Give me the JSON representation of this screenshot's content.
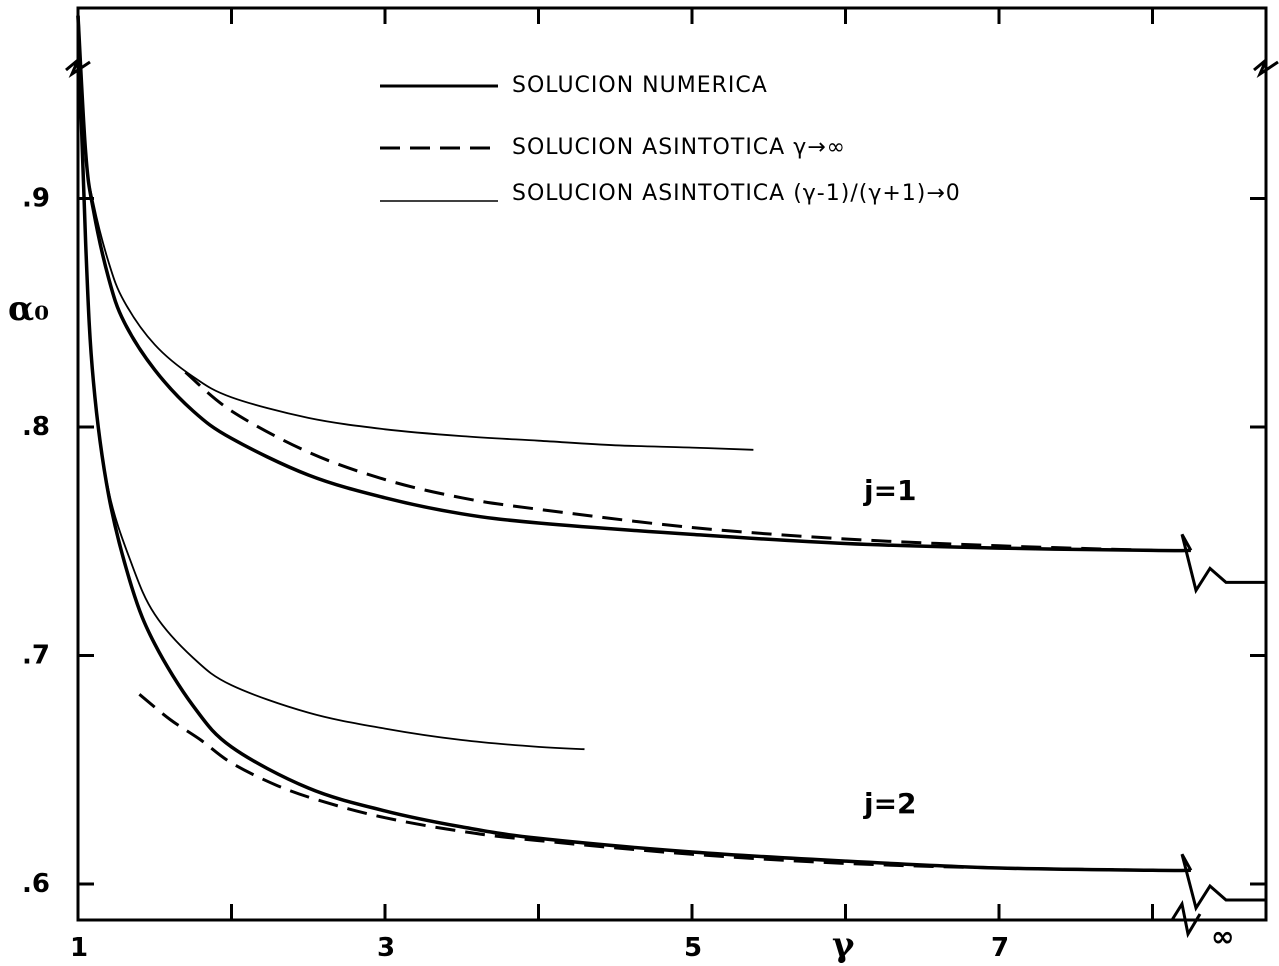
{
  "chart_data": {
    "type": "line",
    "title": "",
    "xlabel": "γ",
    "ylabel": "α₀",
    "xlim": [
      1,
      8.5
    ],
    "ylim": [
      0.59,
      1.0
    ],
    "x_ticks": [
      {
        "value": 1,
        "label": "1"
      },
      {
        "value": 3,
        "label": "3"
      },
      {
        "value": 5,
        "label": "5"
      },
      {
        "value": 7,
        "label": "7"
      }
    ],
    "x_minor_ticks": [
      2,
      4,
      6,
      8
    ],
    "x_infinity_label": "∞",
    "y_ticks": [
      {
        "value": 0.6,
        "label": ".6"
      },
      {
        "value": 0.7,
        "label": ".7"
      },
      {
        "value": 0.8,
        "label": ".8"
      },
      {
        "value": 0.9,
        "label": ".9"
      },
      {
        "value": 1.0,
        "label": "1"
      }
    ],
    "legend": {
      "position": "top",
      "entries": [
        {
          "label": "SOLUCION NUMERICA",
          "style": "solid-thick"
        },
        {
          "label": "SOLUCION ASINTOTICA γ→∞",
          "style": "dashed"
        },
        {
          "label": "SOLUCION ASINTOTICA (γ-1)/(γ+1)→0",
          "style": "solid-thin"
        }
      ]
    },
    "annotations": [
      {
        "text": "j=1",
        "x": 7.25,
        "y": 0.759
      },
      {
        "text": "j=2",
        "x": 7.25,
        "y": 0.622
      }
    ],
    "series": [
      {
        "style": "solid-thick",
        "x": [
          1.0,
          1.05,
          1.1,
          1.2,
          1.3,
          1.5,
          1.75,
          2.0,
          2.5,
          3.0,
          3.5,
          4.0,
          5.0,
          6.0,
          7.0,
          8.0,
          8.25
        ],
        "y": [
          0.98,
          0.92,
          0.895,
          0.865,
          0.846,
          0.825,
          0.807,
          0.795,
          0.779,
          0.769,
          0.762,
          0.758,
          0.753,
          0.749,
          0.747,
          0.746,
          0.746
        ],
        "asymptote": 0.732
      },
      {
        "style": "dashed",
        "x": [
          1.7,
          2.0,
          2.5,
          3.0,
          3.5,
          4.0,
          5.0,
          6.0,
          7.0,
          8.0
        ],
        "y": [
          0.824,
          0.807,
          0.789,
          0.777,
          0.769,
          0.764,
          0.756,
          0.751,
          0.748,
          0.746
        ]
      },
      {
        "style": "solid-thin",
        "x": [
          1.0,
          1.05,
          1.1,
          1.2,
          1.3,
          1.5,
          1.75,
          2.0,
          2.5,
          3.0,
          3.5,
          4.0,
          4.5,
          5.0,
          5.4
        ],
        "y": [
          0.98,
          0.92,
          0.898,
          0.872,
          0.855,
          0.836,
          0.822,
          0.813,
          0.804,
          0.799,
          0.796,
          0.794,
          0.792,
          0.791,
          0.79
        ]
      },
      {
        "style": "solid-thick",
        "x": [
          1.0,
          1.05,
          1.1,
          1.2,
          1.35,
          1.5,
          1.75,
          2.0,
          2.5,
          3.0,
          3.5,
          4.0,
          5.0,
          6.0,
          7.0,
          8.0,
          8.25
        ],
        "y": [
          0.98,
          0.88,
          0.82,
          0.77,
          0.73,
          0.705,
          0.678,
          0.66,
          0.642,
          0.632,
          0.625,
          0.62,
          0.614,
          0.61,
          0.607,
          0.606,
          0.606
        ],
        "asymptote": 0.593
      },
      {
        "style": "dashed",
        "x": [
          1.4,
          1.6,
          1.8,
          2.0,
          2.3,
          2.6,
          3.0,
          3.5,
          4.0,
          5.0,
          6.0,
          7.0,
          8.0
        ],
        "y": [
          0.683,
          0.672,
          0.663,
          0.653,
          0.643,
          0.636,
          0.629,
          0.623,
          0.619,
          0.613,
          0.609,
          0.607,
          0.606
        ]
      },
      {
        "style": "solid-thin",
        "x": [
          1.0,
          1.05,
          1.1,
          1.2,
          1.35,
          1.5,
          1.75,
          2.0,
          2.5,
          3.0,
          3.5,
          4.0,
          4.3
        ],
        "y": [
          0.98,
          0.88,
          0.82,
          0.772,
          0.74,
          0.718,
          0.699,
          0.687,
          0.675,
          0.668,
          0.663,
          0.66,
          0.659
        ]
      }
    ]
  }
}
